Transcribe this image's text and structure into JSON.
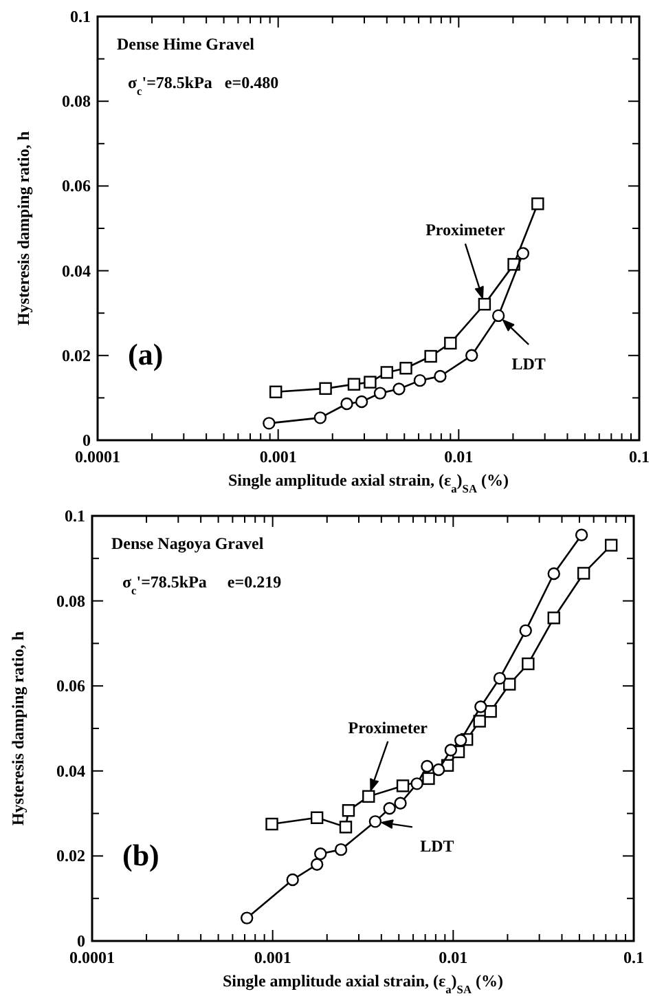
{
  "chart_data": [
    {
      "type": "line",
      "title": "Dense Hime Gravel",
      "subtitle": "σ$_{c}$'=78.5kPa   e=0.480",
      "xlabel": "Single amplitude axial strain, (ε$_{a}$)$_{SA}$ (%)",
      "ylabel": "Hysteresis damping ratio, h",
      "log": "x",
      "grid": false,
      "xlim": [
        0.0001,
        0.1
      ],
      "ylim": [
        0,
        0.1
      ],
      "xticks": [
        {
          "value": 0.0001,
          "label": "0.0001"
        },
        {
          "value": 0.0002,
          "label": null
        },
        {
          "value": 0.0003,
          "label": null
        },
        {
          "value": 0.0004,
          "label": null
        },
        {
          "value": 0.0005,
          "label": null
        },
        {
          "value": 0.0006,
          "label": null
        },
        {
          "value": 0.0007,
          "label": null
        },
        {
          "value": 0.0008,
          "label": null
        },
        {
          "value": 0.0009,
          "label": null
        },
        {
          "value": 0.001,
          "label": "0.001"
        },
        {
          "value": 0.002,
          "label": null
        },
        {
          "value": 0.003,
          "label": null
        },
        {
          "value": 0.004,
          "label": null
        },
        {
          "value": 0.005,
          "label": null
        },
        {
          "value": 0.006,
          "label": null
        },
        {
          "value": 0.007,
          "label": null
        },
        {
          "value": 0.008,
          "label": null
        },
        {
          "value": 0.009,
          "label": null
        },
        {
          "value": 0.01,
          "label": "0.01"
        },
        {
          "value": 0.02,
          "label": null
        },
        {
          "value": 0.03,
          "label": null
        },
        {
          "value": 0.04,
          "label": null
        },
        {
          "value": 0.05,
          "label": null
        },
        {
          "value": 0.06,
          "label": null
        },
        {
          "value": 0.07,
          "label": null
        },
        {
          "value": 0.08,
          "label": null
        },
        {
          "value": 0.09,
          "label": null
        },
        {
          "value": 0.1,
          "label": "0.1"
        }
      ],
      "yticks": [
        0,
        {
          "value": 0.01,
          "label": null
        },
        0.02,
        {
          "value": 0.03,
          "label": null
        },
        0.04,
        {
          "value": 0.05,
          "label": null
        },
        0.06,
        {
          "value": 0.07,
          "label": null
        },
        0.08,
        {
          "value": 0.09,
          "label": null
        },
        0.1
      ],
      "series": [
        {
          "name": "Proximeter",
          "color": "#000000",
          "marker": "square",
          "x": [
            0.00097,
            0.00183,
            0.00263,
            0.00323,
            0.004,
            0.0051,
            0.007,
            0.009,
            0.0139,
            0.0202,
            0.0274
          ],
          "values": [
            0.0114,
            0.0122,
            0.0132,
            0.0137,
            0.016,
            0.017,
            0.0198,
            0.0229,
            0.0321,
            0.0415,
            0.0558
          ]
        },
        {
          "name": "LDT",
          "color": "#000000",
          "marker": "circle",
          "x": [
            0.00089,
            0.00171,
            0.0024,
            0.0029,
            0.00367,
            0.00467,
            0.0061,
            0.0079,
            0.0118,
            0.0166,
            0.0227
          ],
          "values": [
            0.004,
            0.0053,
            0.0086,
            0.0091,
            0.0111,
            0.0121,
            0.0141,
            0.0151,
            0.02,
            0.0294,
            0.0441
          ]
        }
      ],
      "annotations": [
        "(a)"
      ]
    },
    {
      "type": "line",
      "title": "Dense Nagoya Gravel",
      "subtitle": "σ$_{c}$'=78.5kPa     e=0.219",
      "xlabel": "Single amplitude axial strain, (ε$_{a}$)$_{SA}$ (%)",
      "ylabel": "Hysteresis damping ratio, h",
      "log": "x",
      "grid": false,
      "xlim": [
        0.0001,
        0.1
      ],
      "ylim": [
        0,
        0.1
      ],
      "xticks": [
        {
          "value": 0.0001,
          "label": "0.0001"
        },
        {
          "value": 0.0002,
          "label": null
        },
        {
          "value": 0.0003,
          "label": null
        },
        {
          "value": 0.0004,
          "label": null
        },
        {
          "value": 0.0005,
          "label": null
        },
        {
          "value": 0.0006,
          "label": null
        },
        {
          "value": 0.0007,
          "label": null
        },
        {
          "value": 0.0008,
          "label": null
        },
        {
          "value": 0.0009,
          "label": null
        },
        {
          "value": 0.001,
          "label": "0.001"
        },
        {
          "value": 0.002,
          "label": null
        },
        {
          "value": 0.003,
          "label": null
        },
        {
          "value": 0.004,
          "label": null
        },
        {
          "value": 0.005,
          "label": null
        },
        {
          "value": 0.006,
          "label": null
        },
        {
          "value": 0.007,
          "label": null
        },
        {
          "value": 0.008,
          "label": null
        },
        {
          "value": 0.009,
          "label": null
        },
        {
          "value": 0.01,
          "label": "0.01"
        },
        {
          "value": 0.02,
          "label": null
        },
        {
          "value": 0.03,
          "label": null
        },
        {
          "value": 0.04,
          "label": null
        },
        {
          "value": 0.05,
          "label": null
        },
        {
          "value": 0.06,
          "label": null
        },
        {
          "value": 0.07,
          "label": null
        },
        {
          "value": 0.08,
          "label": null
        },
        {
          "value": 0.09,
          "label": null
        },
        {
          "value": 0.1,
          "label": "0.1"
        }
      ],
      "yticks": [
        0,
        {
          "value": 0.01,
          "label": null
        },
        0.02,
        {
          "value": 0.03,
          "label": null
        },
        0.04,
        {
          "value": 0.05,
          "label": null
        },
        0.06,
        {
          "value": 0.07,
          "label": null
        },
        0.08,
        {
          "value": 0.09,
          "label": null
        },
        0.1
      ],
      "series": [
        {
          "name": "Proximeter",
          "color": "#000000",
          "marker": "square",
          "x": [
            0.00099,
            0.00176,
            0.00254,
            0.00263,
            0.0034,
            0.00526,
            0.0073,
            0.0093,
            0.0107,
            0.0119,
            0.014,
            0.0161,
            0.0205,
            0.026,
            0.0361,
            0.0528,
            0.075
          ],
          "values": [
            0.0275,
            0.029,
            0.0268,
            0.0307,
            0.034,
            0.0365,
            0.0382,
            0.0413,
            0.0445,
            0.0474,
            0.0517,
            0.054,
            0.0604,
            0.0652,
            0.076,
            0.0865,
            0.0931
          ]
        },
        {
          "name": "LDT",
          "color": "#000000",
          "marker": "circle",
          "x": [
            0.00072,
            0.00129,
            0.00176,
            0.00184,
            0.00239,
            0.0037,
            0.00444,
            0.0051,
            0.0063,
            0.00717,
            0.0083,
            0.0097,
            0.011,
            0.0142,
            0.0181,
            0.0252,
            0.0361,
            0.0514
          ],
          "values": [
            0.0054,
            0.0144,
            0.018,
            0.0205,
            0.0215,
            0.0281,
            0.0312,
            0.0324,
            0.037,
            0.0411,
            0.0403,
            0.0449,
            0.0472,
            0.0551,
            0.0618,
            0.073,
            0.0864,
            0.0955
          ]
        }
      ],
      "annotations": [
        "(b)"
      ]
    }
  ]
}
